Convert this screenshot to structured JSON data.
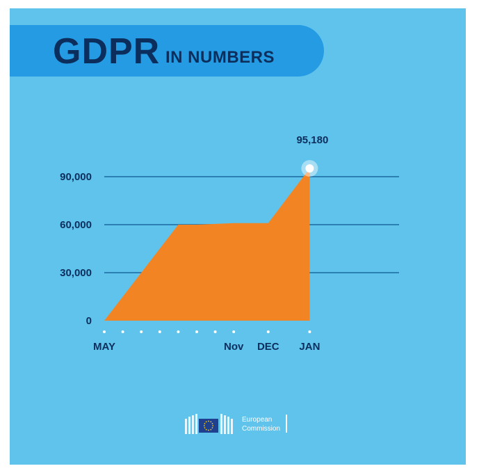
{
  "title": {
    "main": "GDPR",
    "sub": "IN NUMBERS"
  },
  "chart_data": {
    "type": "area",
    "categories": [
      "MAY",
      "",
      "",
      "",
      "",
      "",
      "",
      "Nov",
      "DEC",
      "JAN"
    ],
    "values": [
      0,
      15000,
      30000,
      45000,
      60000,
      60000,
      60500,
      61000,
      61000,
      95180
    ],
    "yticks": [
      "0",
      "30,000",
      "60,000",
      "90,000"
    ],
    "ytick_values": [
      0,
      30000,
      60000,
      90000
    ],
    "ylim": [
      0,
      100000
    ],
    "peak_label": "95,180",
    "grid": true
  },
  "colors": {
    "background": "#5fc3ec",
    "banner": "#249be2",
    "title": "#0c2e5d",
    "area": "#f28424",
    "grid": "#2c7fb2",
    "marker": "#ffffff"
  },
  "logo": {
    "line1": "European",
    "line2": "Commission",
    "icon": "eu-flag-icon"
  }
}
